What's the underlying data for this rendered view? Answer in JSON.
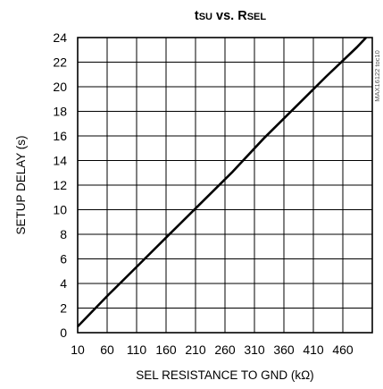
{
  "chart_data": {
    "type": "line",
    "title": {
      "t": "t",
      "t_sub": "SU",
      "vs": " vs. ",
      "r": "R",
      "r_sub": "SEL"
    },
    "xlabel": "SEL RESISTANCE TO GND (kΩ)",
    "ylabel": "SETUP DELAY (s)",
    "figure_id": "MAX16122 toc10",
    "xlim": [
      10,
      485
    ],
    "ylim": [
      0,
      24
    ],
    "x_ticks": [
      10,
      60,
      110,
      160,
      210,
      260,
      310,
      360,
      410,
      460
    ],
    "y_ticks": [
      0,
      2,
      4,
      6,
      8,
      10,
      12,
      14,
      16,
      18,
      20,
      22,
      24
    ],
    "x_grid_lines": 9,
    "y_grid_lines": 12,
    "grid": true,
    "series": [
      {
        "x": [
          10,
          60,
          110,
          160,
          210,
          260,
          310,
          360,
          410,
          460,
          475
        ],
        "y": [
          0.5,
          3.1,
          5.6,
          8.1,
          10.6,
          13.1,
          15.8,
          18.3,
          20.8,
          23.2,
          24.0
        ]
      }
    ]
  }
}
